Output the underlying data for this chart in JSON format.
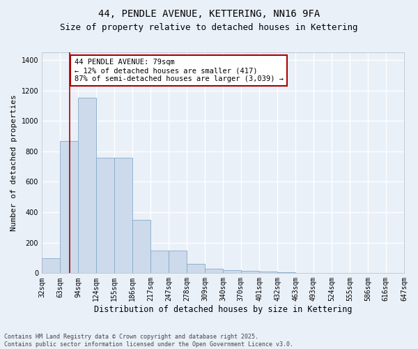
{
  "title1": "44, PENDLE AVENUE, KETTERING, NN16 9FA",
  "title2": "Size of property relative to detached houses in Kettering",
  "xlabel": "Distribution of detached houses by size in Kettering",
  "ylabel": "Number of detached properties",
  "footer1": "Contains HM Land Registry data © Crown copyright and database right 2025.",
  "footer2": "Contains public sector information licensed under the Open Government Licence v3.0.",
  "annotation_line1": "44 PENDLE AVENUE: 79sqm",
  "annotation_line2": "← 12% of detached houses are smaller (417)",
  "annotation_line3": "87% of semi-detached houses are larger (3,039) →",
  "bar_color": "#cddaeb",
  "bar_edge_color": "#85aac8",
  "bar_left_edges": [
    32,
    63,
    94,
    124,
    155,
    186,
    217,
    247,
    278,
    309,
    340,
    370,
    401,
    432,
    463,
    493,
    524,
    555,
    586,
    616
  ],
  "bar_widths": [
    31,
    31,
    30,
    31,
    31,
    31,
    30,
    31,
    31,
    31,
    30,
    31,
    31,
    31,
    30,
    31,
    31,
    31,
    30,
    31
  ],
  "bar_heights": [
    100,
    870,
    1150,
    758,
    758,
    350,
    150,
    148,
    60,
    30,
    22,
    15,
    10,
    5,
    3,
    0,
    0,
    0,
    0,
    0
  ],
  "tick_labels": [
    "32sqm",
    "63sqm",
    "94sqm",
    "124sqm",
    "155sqm",
    "186sqm",
    "217sqm",
    "247sqm",
    "278sqm",
    "309sqm",
    "340sqm",
    "370sqm",
    "401sqm",
    "432sqm",
    "463sqm",
    "493sqm",
    "524sqm",
    "555sqm",
    "586sqm",
    "616sqm",
    "647sqm"
  ],
  "property_line_x": 79,
  "ylim": [
    0,
    1450
  ],
  "yticks": [
    0,
    200,
    400,
    600,
    800,
    1000,
    1200,
    1400
  ],
  "bg_color": "#eaf0f8",
  "plot_bg_color": "#eaf0f8",
  "grid_color": "#ffffff",
  "red_line_color": "#aa0000",
  "annotation_box_color": "#aa0000",
  "title_fontsize": 10,
  "subtitle_fontsize": 9,
  "axis_label_fontsize": 8,
  "tick_fontsize": 7,
  "annotation_fontsize": 7.5,
  "footer_fontsize": 6
}
